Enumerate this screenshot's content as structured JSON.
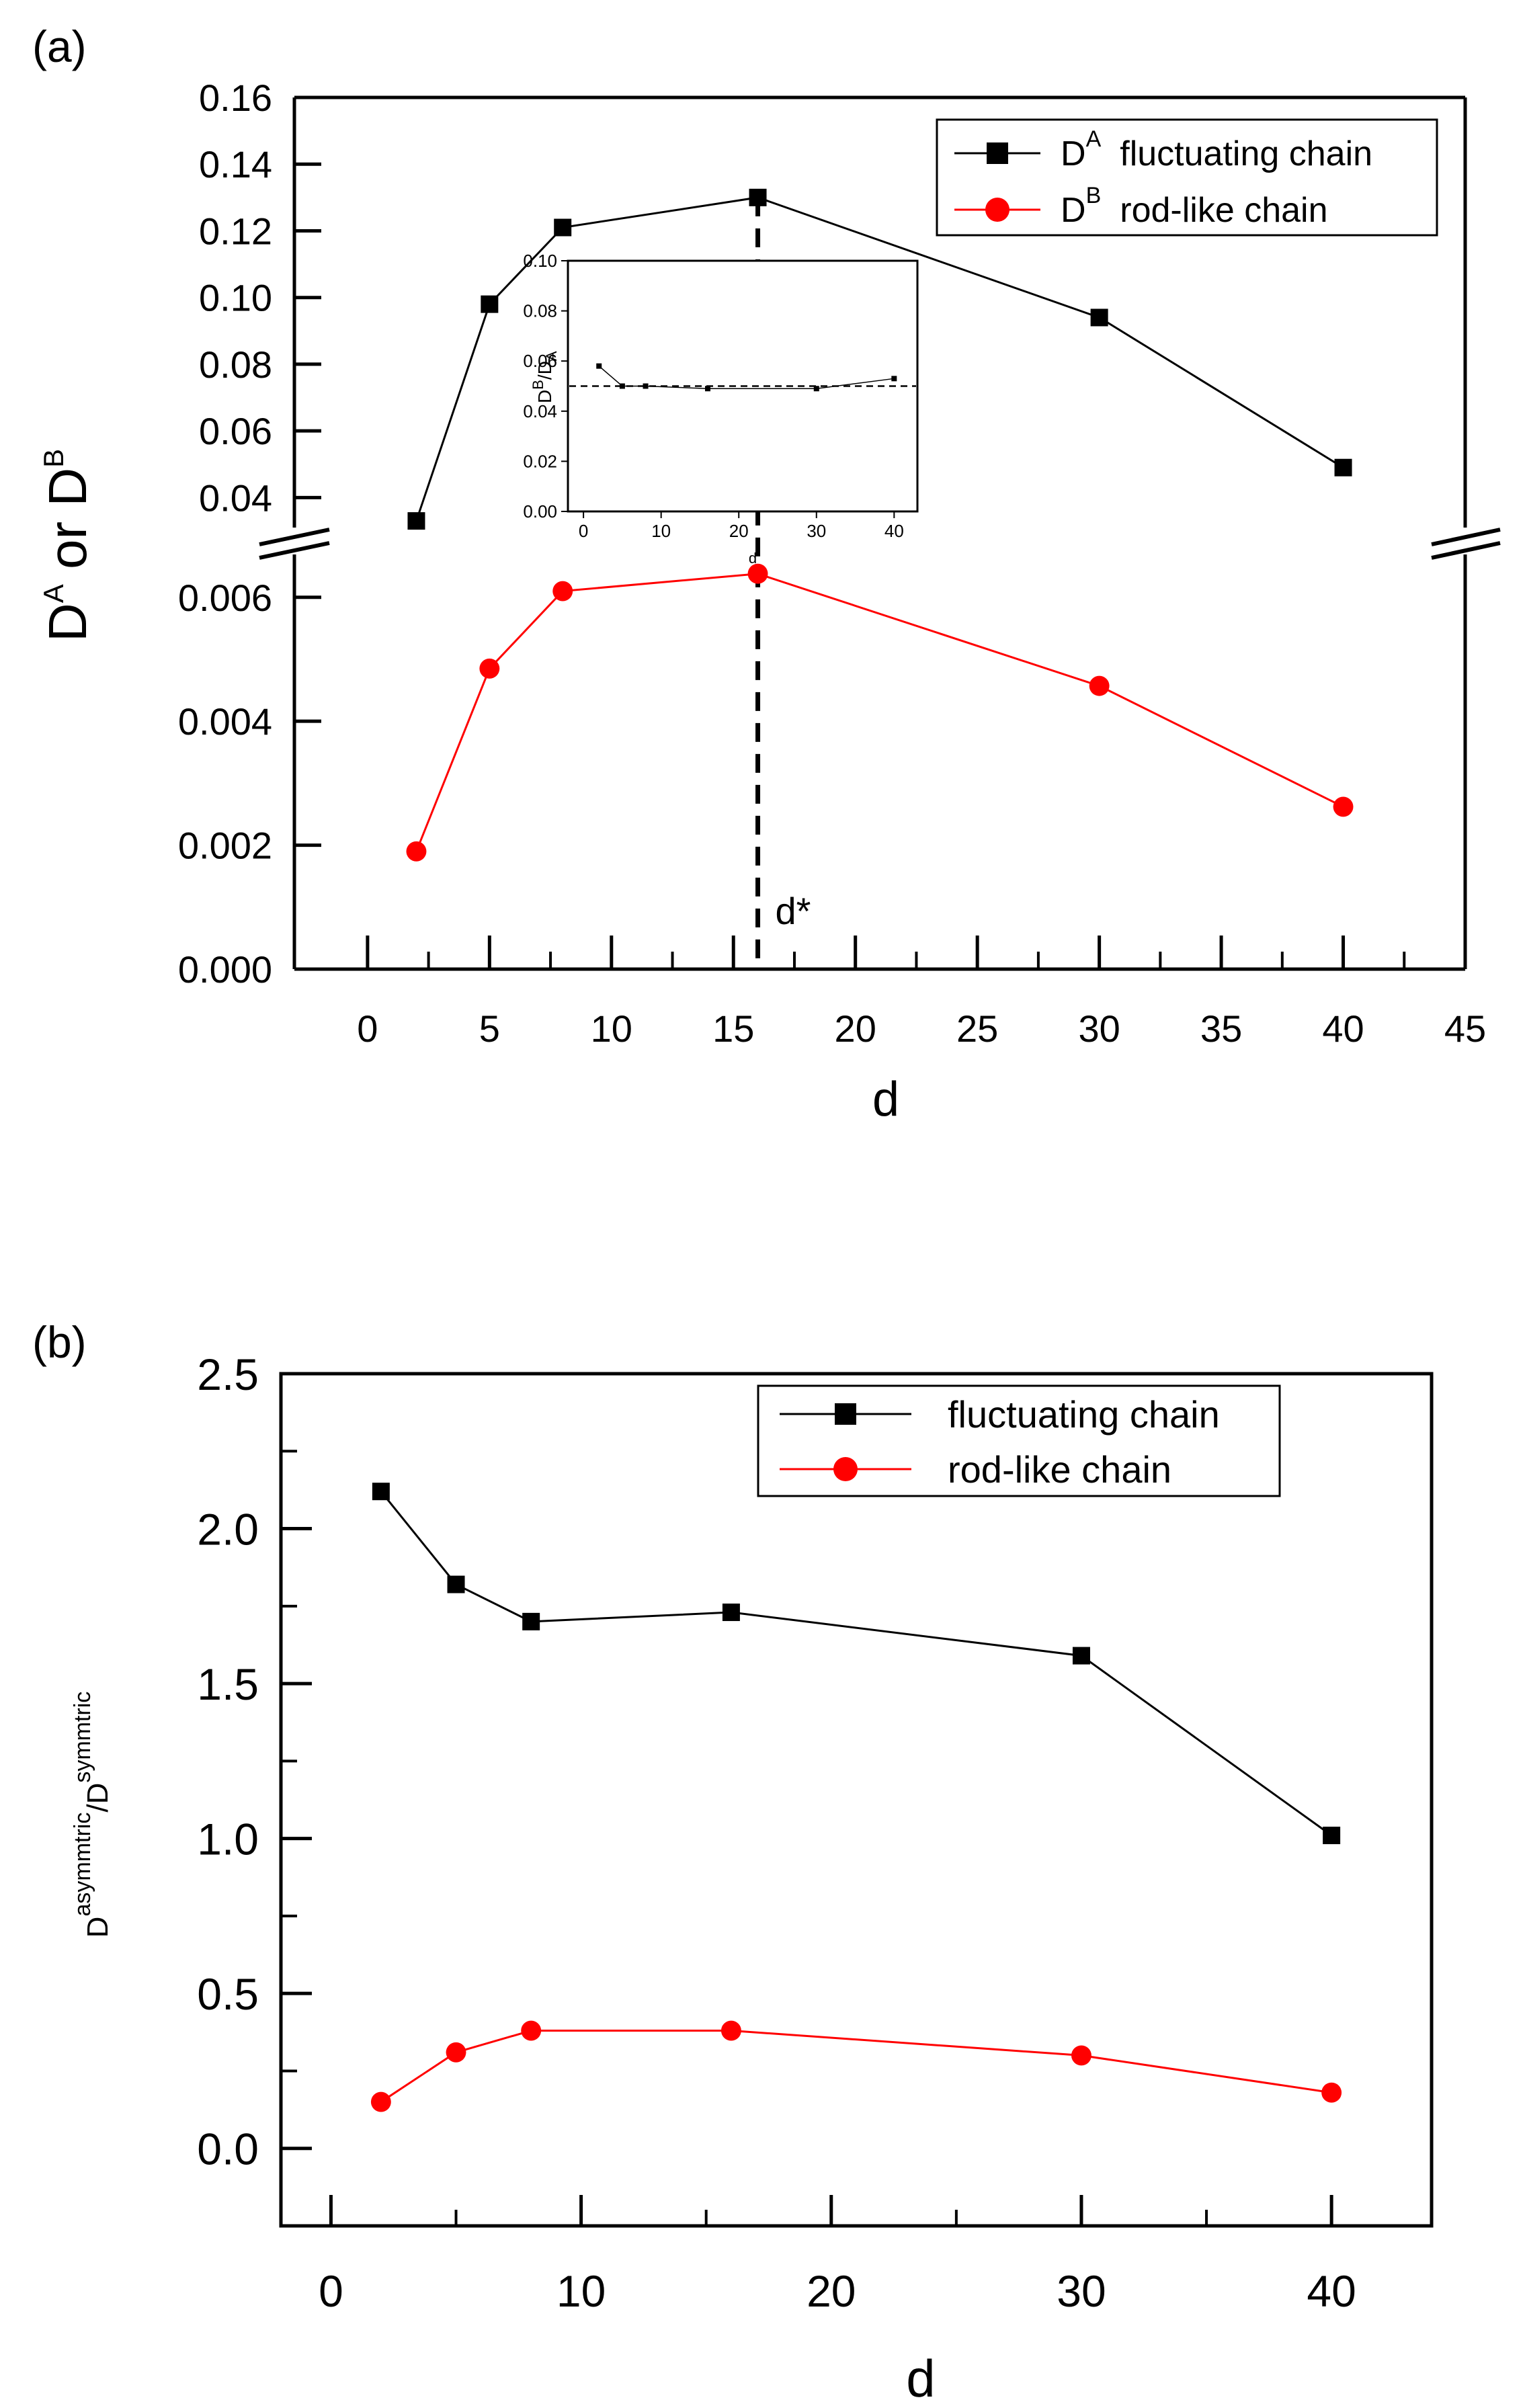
{
  "chart_data": [
    {
      "id": "panel-a",
      "type": "line",
      "panel_label": "(a)",
      "xlabel": "d",
      "ylabel": {
        "pre": "D",
        "sup1": "A",
        "mid": " or D",
        "sup2": "B"
      },
      "xlim": [
        -3,
        45
      ],
      "x_ticks": [
        0,
        5,
        10,
        15,
        20,
        25,
        30,
        35,
        40,
        45
      ],
      "x_tick_labels": [
        "0",
        "5",
        "10",
        "15",
        "20",
        "25",
        "30",
        "35",
        "40",
        "45"
      ],
      "axis_break": true,
      "upper_segment": {
        "ylim": [
          0.03,
          0.16
        ],
        "y_ticks": [
          0.04,
          0.06,
          0.08,
          0.1,
          0.12,
          0.14,
          0.16
        ],
        "y_tick_labels": [
          "0.04",
          "0.06",
          "0.08",
          "0.10",
          "0.12",
          "0.14",
          "0.16"
        ]
      },
      "lower_segment": {
        "ylim": [
          0.0,
          0.0068
        ],
        "y_ticks": [
          0.0,
          0.002,
          0.004,
          0.006
        ],
        "y_tick_labels": [
          "0.000",
          "0.002",
          "0.004",
          "0.006"
        ]
      },
      "series": [
        {
          "name": "D^A fluctuating chain",
          "legend": {
            "base": "D",
            "sup": "A",
            "label": "fluctuating chain"
          },
          "color": "#000000",
          "marker": "square",
          "segment": "upper",
          "x": [
            2,
            5,
            8,
            16,
            30,
            40
          ],
          "values": [
            0.033,
            0.098,
            0.121,
            0.13,
            0.094,
            0.049
          ]
        },
        {
          "name": "D^B rod-like chain",
          "legend": {
            "base": "D",
            "sup": "B",
            "label": "rod-like chain"
          },
          "color": "#ff0000",
          "marker": "circle",
          "segment": "lower",
          "x": [
            2,
            5,
            8,
            16,
            30,
            40
          ],
          "values": [
            0.0019,
            0.00485,
            0.0061,
            0.00638,
            0.00457,
            0.00262
          ]
        }
      ],
      "reference_line": {
        "x": 16,
        "label": "d*",
        "style": "dashed"
      },
      "inset": {
        "type": "line",
        "xlabel": "d",
        "ylabel": {
          "pre": "D",
          "sup": "B",
          "mid": "/D",
          "sub": "A"
        },
        "xlim": [
          -2,
          43
        ],
        "ylim": [
          0,
          0.1
        ],
        "x_ticks": [
          0,
          10,
          20,
          30,
          40
        ],
        "x_tick_labels": [
          "0",
          "10",
          "20",
          "30",
          "40"
        ],
        "y_ticks": [
          0.0,
          0.02,
          0.04,
          0.06,
          0.08,
          0.1
        ],
        "y_tick_labels": [
          "0.00",
          "0.02",
          "0.04",
          "0.06",
          "0.08",
          "0.10"
        ],
        "x": [
          2,
          5,
          8,
          16,
          30,
          40
        ],
        "values": [
          0.058,
          0.05,
          0.05,
          0.049,
          0.049,
          0.053
        ],
        "reference_value": 0.05,
        "vertical_line_x": 21
      }
    },
    {
      "id": "panel-b",
      "type": "line",
      "panel_label": "(b)",
      "xlabel": "d",
      "ylabel": {
        "pre": "D",
        "sup1": "asymmtric",
        "mid": "/D",
        "sup2": "symmtric"
      },
      "xlim": [
        -2,
        44
      ],
      "ylim": [
        -0.25,
        2.5
      ],
      "x_ticks": [
        0,
        10,
        20,
        30,
        40
      ],
      "x_tick_labels": [
        "0",
        "10",
        "20",
        "30",
        "40"
      ],
      "y_ticks": [
        0.0,
        0.5,
        1.0,
        1.5,
        2.0,
        2.5
      ],
      "y_tick_labels": [
        "0.0",
        "0.5",
        "1.0",
        "1.5",
        "2.0",
        "2.5"
      ],
      "series": [
        {
          "name": "fluctuating chain",
          "color": "#000000",
          "marker": "square",
          "x": [
            2,
            5,
            8,
            16,
            30,
            40
          ],
          "values": [
            2.12,
            1.82,
            1.7,
            1.73,
            1.59,
            1.01
          ]
        },
        {
          "name": "rod-like chain",
          "color": "#ff0000",
          "marker": "circle",
          "x": [
            2,
            5,
            8,
            16,
            30,
            40
          ],
          "values": [
            0.15,
            0.31,
            0.38,
            0.38,
            0.3,
            0.18
          ]
        }
      ]
    }
  ]
}
